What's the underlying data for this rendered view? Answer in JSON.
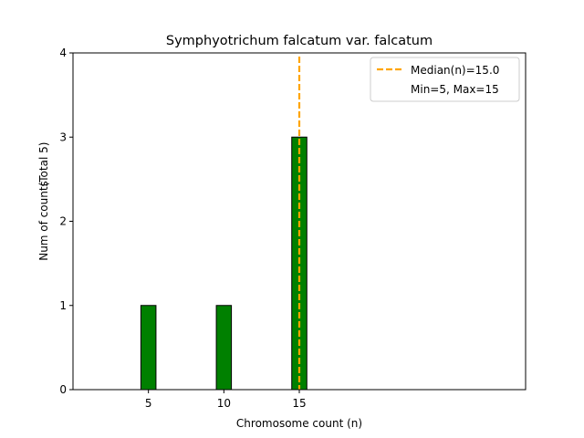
{
  "chart_data": {
    "type": "bar",
    "title": "Symphyotrichum falcatum var. falcatum",
    "xlabel": "Chromosome count (n)",
    "ylabel": "Num of counts",
    "ylabel_secondary": "(Total 5)",
    "xlim": [
      0,
      30
    ],
    "ylim": [
      0,
      4
    ],
    "x_ticks": [
      5,
      10,
      15
    ],
    "y_ticks": [
      0,
      1,
      2,
      3,
      4
    ],
    "bar_width": 1,
    "baseline_extent": [
      0,
      18.5
    ],
    "bars": [
      {
        "x": 5,
        "value": 1
      },
      {
        "x": 10,
        "value": 1
      },
      {
        "x": 15,
        "value": 3
      }
    ],
    "median": 15.0,
    "bar_color": "#008000",
    "median_color": "#FFA500",
    "legend": {
      "placement": "top-right",
      "entries": [
        "Median(n)=15.0",
        "Min=5, Max=15"
      ]
    }
  }
}
